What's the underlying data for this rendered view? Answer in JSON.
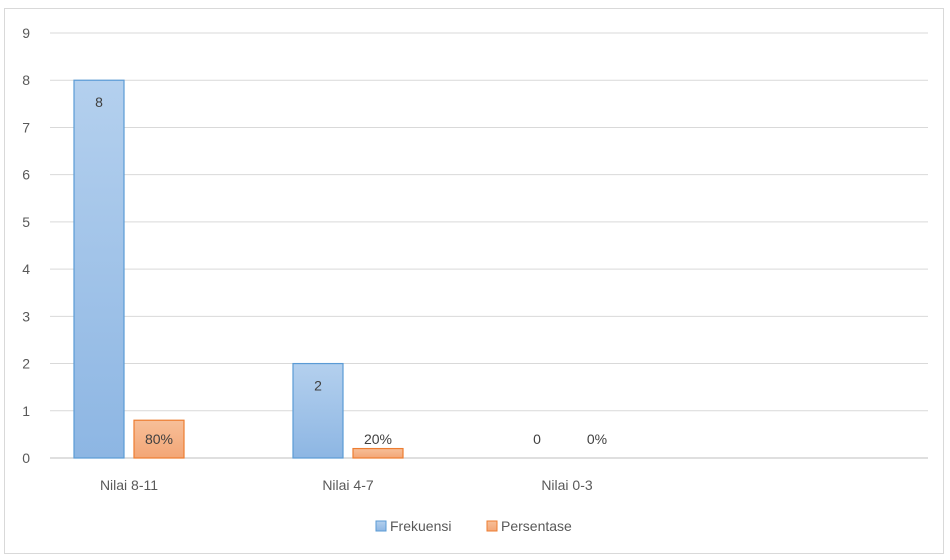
{
  "chart_data": {
    "type": "bar",
    "categories": [
      "Nilai 8-11",
      "Nilai 4-7",
      "Nilai 0-3"
    ],
    "series": [
      {
        "name": "Frekuensi",
        "values": [
          8,
          2,
          0
        ],
        "labels": [
          "8",
          "2",
          "0"
        ],
        "color": "#9dc3e6"
      },
      {
        "name": "Persentase",
        "values": [
          0.8,
          0.2,
          0
        ],
        "labels": [
          "80%",
          "20%",
          "0%"
        ],
        "color": "#f4b183"
      }
    ],
    "ylim": [
      0,
      9
    ],
    "yticks": [
      "0",
      "1",
      "2",
      "3",
      "4",
      "5",
      "6",
      "7",
      "8",
      "9"
    ],
    "grid": true,
    "legend": "bottom",
    "colors": {
      "blue_stroke": "#5b9bd5",
      "orange_stroke": "#ed7d31",
      "grid": "#d9d9d9",
      "axis": "#bfbfbf"
    }
  }
}
